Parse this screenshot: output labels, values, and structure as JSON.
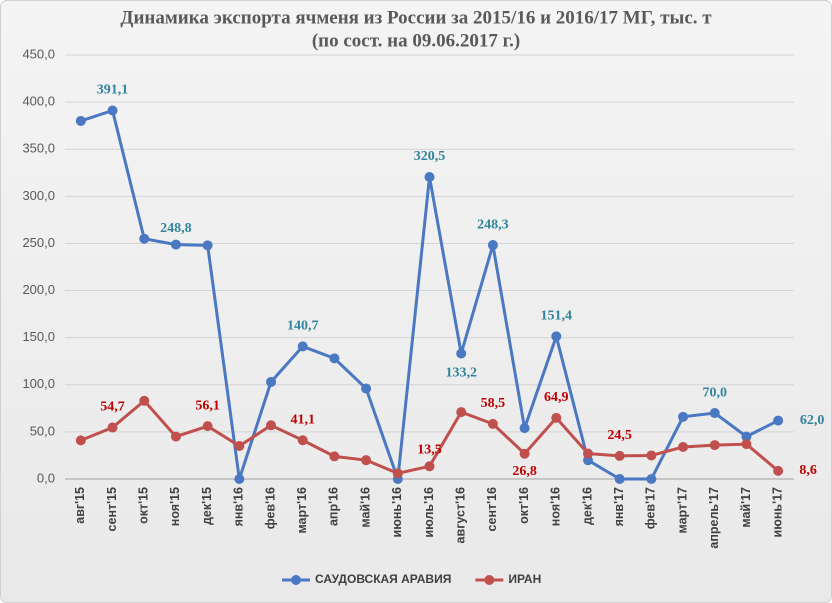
{
  "chart_data": {
    "type": "line",
    "title": "Динамика экспорта ячменя из России за  2015/16 и 2016/17 МГ, тыс. т",
    "subtitle": "(по сост. на 09.06.2017 г.)",
    "categories": [
      "авг'15",
      "сент'15",
      "окт'15",
      "ноя'15",
      "дек'15",
      "янв'16",
      "фев'16",
      "март'16",
      "апр'16",
      "май'16",
      "июнь'16",
      "июль'16",
      "август'16",
      "сент'16",
      "окт'16",
      "ноя'16",
      "дек'16",
      "янв'17",
      "фев'17",
      "март'17",
      "апрель'17",
      "май'17",
      "июнь'17"
    ],
    "series": [
      {
        "name": "САУДОВСКАЯ АРАВИЯ",
        "color": "#4a78c2",
        "label_color": "#31849b",
        "values": [
          380,
          391.1,
          255,
          248.8,
          248,
          0,
          103,
          140.7,
          128,
          96,
          0,
          320.5,
          133.2,
          248.3,
          54,
          151.4,
          20,
          0,
          0,
          66,
          70.0,
          45,
          62.0
        ],
        "value_labels": [
          null,
          "391,1",
          null,
          "248,8",
          null,
          null,
          null,
          "140,7",
          null,
          null,
          null,
          "320,5",
          "133,2",
          "248,3",
          null,
          "151,4",
          null,
          null,
          null,
          null,
          "70,0",
          null,
          "62,0"
        ]
      },
      {
        "name": "ИРАН",
        "color": "#c0504d",
        "label_color": "#c00000",
        "values": [
          41,
          54.7,
          83,
          45,
          56.1,
          35,
          57,
          41.1,
          24,
          20,
          6,
          13.5,
          71,
          58.5,
          26.8,
          64.9,
          27,
          24.5,
          25,
          34,
          36,
          37,
          8.6
        ],
        "value_labels": [
          null,
          "54,7",
          null,
          null,
          "56,1",
          null,
          null,
          "41,1",
          null,
          null,
          null,
          "13,5",
          null,
          "58,5",
          "26,8",
          "64,9",
          null,
          "24,5",
          null,
          null,
          null,
          null,
          "8,6"
        ]
      }
    ],
    "ylim": [
      0,
      450
    ],
    "yticks": [
      {
        "value": 0,
        "label": "0,0"
      },
      {
        "value": 50,
        "label": "50,0"
      },
      {
        "value": 100,
        "label": "100,0"
      },
      {
        "value": 150,
        "label": "150,0"
      },
      {
        "value": 200,
        "label": "200,0"
      },
      {
        "value": 250,
        "label": "250,0"
      },
      {
        "value": 300,
        "label": "300,0"
      },
      {
        "value": 350,
        "label": "350,0"
      },
      {
        "value": 400,
        "label": "400,0"
      },
      {
        "value": 450,
        "label": "450,0"
      }
    ],
    "grid": true,
    "legend": "bottom"
  }
}
